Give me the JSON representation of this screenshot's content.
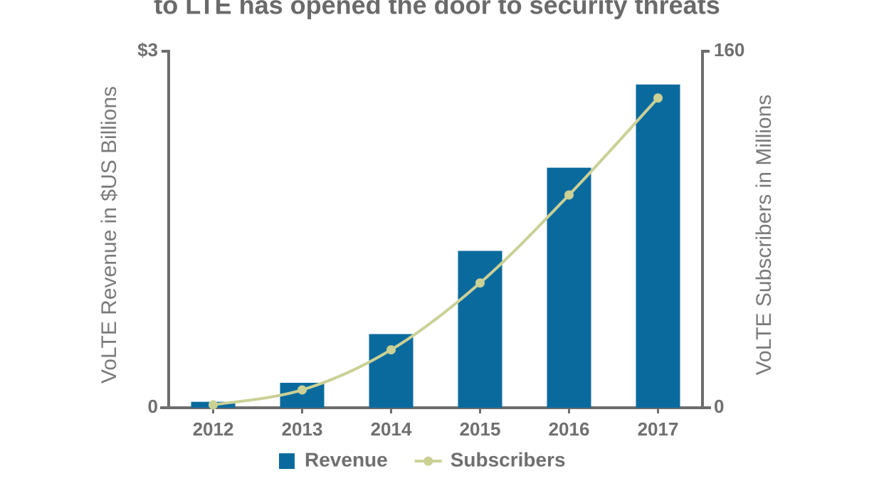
{
  "chart_data": {
    "type": "bar-line",
    "title": "to LTE has opened the door to security threats",
    "y_label": "VoLTE Revenue in $US Billions",
    "y2_label": "VoLTE Subscribers in Millions",
    "categories": [
      "2012",
      "2013",
      "2014",
      "2015",
      "2016",
      "2017"
    ],
    "series": [
      {
        "name": "Revenue",
        "type": "bar",
        "color": "#0a6a9e",
        "values": [
          0.05,
          0.21,
          0.62,
          1.32,
          2.02,
          2.72
        ]
      },
      {
        "name": "Subscribers",
        "type": "line",
        "axis": "y2",
        "color": "#cbd095",
        "values": [
          1.3,
          8,
          26,
          56,
          95.5,
          139
        ]
      }
    ],
    "ylim": [
      0,
      3
    ],
    "yticks": [
      0,
      {
        "value": 3,
        "label": "$3"
      }
    ],
    "y2lim": [
      0,
      160
    ],
    "y2ticks": [
      0,
      160
    ],
    "legend": "bottom"
  }
}
